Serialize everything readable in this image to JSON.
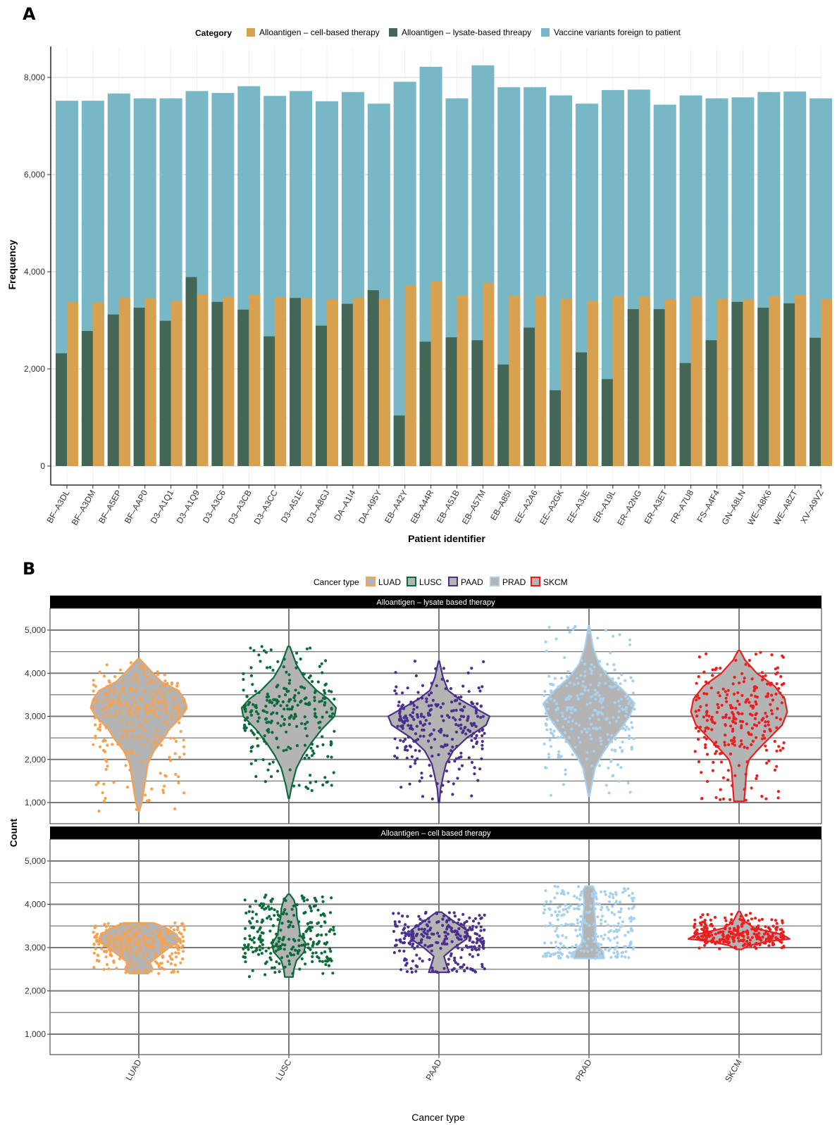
{
  "panel_a_label": "A",
  "panel_b_label": "B",
  "chart_data": [
    {
      "type": "bar",
      "subtype": "grouped-overlay",
      "xlabel": "Patient identifier",
      "ylabel": "Frequency",
      "ylim": [
        0,
        8800
      ],
      "y_ticks": [
        0,
        2000,
        4000,
        6000,
        8000
      ],
      "y_tick_labels": [
        "0",
        "2,000",
        "4,000",
        "6,000",
        "8,000"
      ],
      "legend_title": "Category",
      "legend_position": "top",
      "grid": true,
      "categories": [
        "BF–A3DL",
        "BF–A3DM",
        "BF–A5EP",
        "BF–AAP0",
        "D3–A1Q1",
        "D3–A1Q9",
        "D3–A3C6",
        "D3–A3CB",
        "D3–A3CC",
        "D3–A51E",
        "D3–A8GJ",
        "DA–A1I4",
        "DA–A95Y",
        "EB–A42Y",
        "EB–A44R",
        "EB–A51B",
        "EB–A57M",
        "EB–A85I",
        "EE–A2A6",
        "EE–A2GK",
        "EE–A3JE",
        "ER–A19L",
        "ER–A2NG",
        "ER–A3ET",
        "FR–A7U8",
        "FS–A4F4",
        "GN–A8LN",
        "WE–A8K6",
        "WE–A8ZT",
        "XV–A9VZ"
      ],
      "series": [
        {
          "name": "Alloantigen – cell-based therapy",
          "color": "#D8A14F",
          "values": [
            3380,
            3370,
            3470,
            3450,
            3390,
            3540,
            3480,
            3530,
            3480,
            3460,
            3420,
            3470,
            3440,
            3720,
            3800,
            3510,
            3770,
            3510,
            3500,
            3440,
            3400,
            3500,
            3490,
            3420,
            3490,
            3440,
            3430,
            3500,
            3530,
            3440
          ]
        },
        {
          "name": "Alloantigen – lysate-based threapy",
          "color": "#436657",
          "values": [
            2320,
            2780,
            3120,
            3260,
            2990,
            3890,
            3380,
            3220,
            2670,
            3460,
            2890,
            3340,
            3620,
            1040,
            2560,
            2650,
            2590,
            2090,
            2850,
            1560,
            2340,
            1790,
            3230,
            3230,
            2120,
            2590,
            3380,
            3260,
            3350,
            2640
          ]
        },
        {
          "name": "Vaccine variants foreign to patient",
          "color": "#78B7C5",
          "values": [
            7520,
            7520,
            7670,
            7570,
            7570,
            7720,
            7680,
            7820,
            7620,
            7720,
            7510,
            7700,
            7460,
            7910,
            8220,
            7570,
            8250,
            7800,
            7800,
            7630,
            7460,
            7740,
            7750,
            7440,
            7630,
            7570,
            7590,
            7700,
            7710,
            7570
          ]
        }
      ]
    },
    {
      "type": "violin",
      "xlabel": "Cancer type",
      "ylabel": "Count",
      "legend_title": "Cancer type",
      "legend_position": "top",
      "categories": [
        "LUAD",
        "LUSC",
        "PAAD",
        "PRAD",
        "SKCM"
      ],
      "colors": {
        "LUAD": "#F8A14E",
        "LUSC": "#0B6B3A",
        "PAAD": "#4B2F8C",
        "PRAD": "#A6D0EE",
        "SKCM": "#EE1C1C"
      },
      "ylim": [
        500,
        5650
      ],
      "y_ticks": [
        1000,
        2000,
        3000,
        4000,
        5000
      ],
      "y_tick_labels": [
        "1,000",
        "2,000",
        "3,000",
        "4,000",
        "5,000"
      ],
      "facets": [
        {
          "title": "Alloantigen – lysate based therapy",
          "groups": [
            {
              "name": "LUAD",
              "min": 800,
              "max": 4330,
              "profile": [
                [
                  800,
                  0.01
                ],
                [
                  1000,
                  0.06
                ],
                [
                  1300,
                  0.1
                ],
                [
                  1600,
                  0.14
                ],
                [
                  1900,
                  0.18
                ],
                [
                  2200,
                  0.3
                ],
                [
                  2500,
                  0.5
                ],
                [
                  2700,
                  0.6
                ],
                [
                  3000,
                  0.85
                ],
                [
                  3200,
                  0.95
                ],
                [
                  3400,
                  0.9
                ],
                [
                  3600,
                  0.78
                ],
                [
                  3800,
                  0.45
                ],
                [
                  4000,
                  0.28
                ],
                [
                  4330,
                  0.02
                ]
              ]
            },
            {
              "name": "LUSC",
              "min": 1100,
              "max": 4620,
              "profile": [
                [
                  1100,
                  0.01
                ],
                [
                  1400,
                  0.06
                ],
                [
                  1800,
                  0.15
                ],
                [
                  2100,
                  0.28
                ],
                [
                  2400,
                  0.45
                ],
                [
                  2700,
                  0.65
                ],
                [
                  3000,
                  0.9
                ],
                [
                  3200,
                  0.93
                ],
                [
                  3400,
                  0.78
                ],
                [
                  3600,
                  0.55
                ],
                [
                  3900,
                  0.3
                ],
                [
                  4200,
                  0.15
                ],
                [
                  4620,
                  0.02
                ]
              ]
            },
            {
              "name": "PAAD",
              "min": 1000,
              "max": 4280,
              "profile": [
                [
                  1000,
                  0.01
                ],
                [
                  1300,
                  0.03
                ],
                [
                  1600,
                  0.08
                ],
                [
                  1900,
                  0.14
                ],
                [
                  2200,
                  0.28
                ],
                [
                  2500,
                  0.55
                ],
                [
                  2800,
                  0.93
                ],
                [
                  3000,
                  1.0
                ],
                [
                  3200,
                  0.7
                ],
                [
                  3400,
                  0.4
                ],
                [
                  3600,
                  0.18
                ],
                [
                  3900,
                  0.08
                ],
                [
                  4280,
                  0.01
                ]
              ]
            },
            {
              "name": "PRAD",
              "min": 1150,
              "max": 5100,
              "profile": [
                [
                  1150,
                  0.01
                ],
                [
                  1500,
                  0.07
                ],
                [
                  1800,
                  0.12
                ],
                [
                  2100,
                  0.25
                ],
                [
                  2400,
                  0.42
                ],
                [
                  2700,
                  0.62
                ],
                [
                  3000,
                  0.8
                ],
                [
                  3300,
                  0.9
                ],
                [
                  3600,
                  0.68
                ],
                [
                  3900,
                  0.4
                ],
                [
                  4200,
                  0.2
                ],
                [
                  4600,
                  0.08
                ],
                [
                  5100,
                  0.01
                ]
              ]
            },
            {
              "name": "SKCM",
              "min": 1030,
              "max": 4520,
              "profile": [
                [
                  1030,
                  0.1
                ],
                [
                  1300,
                  0.12
                ],
                [
                  1500,
                  0.13
                ],
                [
                  1800,
                  0.15
                ],
                [
                  2000,
                  0.2
                ],
                [
                  2200,
                  0.35
                ],
                [
                  2500,
                  0.6
                ],
                [
                  2800,
                  0.85
                ],
                [
                  3100,
                  0.95
                ],
                [
                  3400,
                  0.9
                ],
                [
                  3700,
                  0.7
                ],
                [
                  4000,
                  0.35
                ],
                [
                  4300,
                  0.12
                ],
                [
                  4520,
                  0.02
                ]
              ]
            }
          ]
        },
        {
          "title": "Alloantigen – cell based therapy",
          "groups": [
            {
              "name": "LUAD",
              "min": 2400,
              "max": 3570,
              "profile": [
                [
                  2400,
                  0.18
                ],
                [
                  2500,
                  0.28
                ],
                [
                  2650,
                  0.22
                ],
                [
                  2800,
                  0.38
                ],
                [
                  3000,
                  0.6
                ],
                [
                  3150,
                  0.8
                ],
                [
                  3300,
                  0.75
                ],
                [
                  3450,
                  0.55
                ],
                [
                  3570,
                  0.3
                ]
              ]
            },
            {
              "name": "LUSC",
              "min": 2320,
              "max": 4230,
              "profile": [
                [
                  2320,
                  0.08
                ],
                [
                  2500,
                  0.1
                ],
                [
                  2700,
                  0.15
                ],
                [
                  2900,
                  0.3
                ],
                [
                  3100,
                  0.33
                ],
                [
                  3300,
                  0.22
                ],
                [
                  3500,
                  0.2
                ],
                [
                  3700,
                  0.16
                ],
                [
                  3900,
                  0.15
                ],
                [
                  4100,
                  0.1
                ],
                [
                  4230,
                  0.02
                ]
              ]
            },
            {
              "name": "PAAD",
              "min": 2430,
              "max": 3820,
              "profile": [
                [
                  2430,
                  0.2
                ],
                [
                  2600,
                  0.15
                ],
                [
                  2800,
                  0.1
                ],
                [
                  3000,
                  0.3
                ],
                [
                  3200,
                  0.55
                ],
                [
                  3400,
                  0.55
                ],
                [
                  3600,
                  0.3
                ],
                [
                  3820,
                  0.05
                ]
              ]
            },
            {
              "name": "PRAD",
              "min": 2750,
              "max": 4420,
              "profile": [
                [
                  2750,
                  0.3
                ],
                [
                  2900,
                  0.28
                ],
                [
                  3100,
                  0.15
                ],
                [
                  3300,
                  0.12
                ],
                [
                  3500,
                  0.13
                ],
                [
                  3700,
                  0.12
                ],
                [
                  3900,
                  0.1
                ],
                [
                  4100,
                  0.1
                ],
                [
                  4300,
                  0.12
                ],
                [
                  4420,
                  0.08
                ]
              ]
            },
            {
              "name": "SKCM",
              "min": 2960,
              "max": 3830,
              "profile": [
                [
                  2960,
                  0.05
                ],
                [
                  3050,
                  0.2
                ],
                [
                  3150,
                  0.6
                ],
                [
                  3200,
                  1.0
                ],
                [
                  3300,
                  0.85
                ],
                [
                  3450,
                  0.3
                ],
                [
                  3600,
                  0.12
                ],
                [
                  3830,
                  0.02
                ]
              ]
            }
          ]
        }
      ]
    }
  ]
}
